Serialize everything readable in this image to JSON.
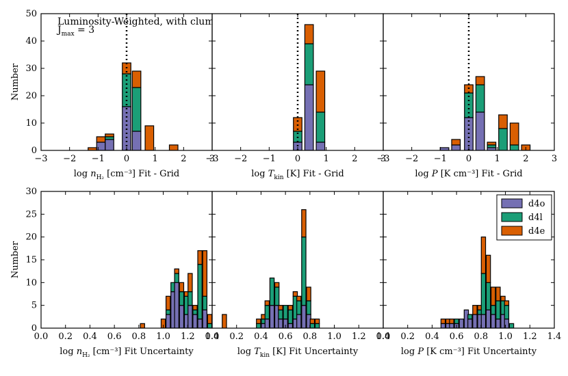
{
  "colors": {
    "d4o": "#7570b3",
    "d4l": "#1b9e77",
    "d4e": "#d95f02"
  },
  "chart_data": {
    "type": "bar",
    "title": "",
    "annotation": {
      "line1": "Luminosity-Weighted, with clumping",
      "line2": "J",
      "line2_sub": "max",
      "line2_rest": " = 3"
    },
    "legend": {
      "placement": "top-right",
      "entries": [
        "d4o",
        "d4l",
        "d4e"
      ]
    },
    "rows": [
      {
        "ylabel": "Number",
        "ylim": [
          0,
          50
        ],
        "yticks": [
          0,
          10,
          20,
          30,
          40,
          50
        ],
        "xticks": [
          -3,
          -2,
          -1,
          0,
          1,
          2,
          3
        ],
        "xtick_labels": [
          "−3",
          "−2",
          "−1",
          "0",
          "1",
          "2",
          "3"
        ],
        "binwidth": 0.3,
        "vline": 0,
        "panels": [
          {
            "xlabel_pre": "log ",
            "xlabel_var": "n",
            "xlabel_sub": "H₂",
            "xlabel_post": " [cm⁻³] Fit - Grid",
            "xlim": [
              -3,
              3
            ],
            "bins": [
              {
                "center": -1.2,
                "d4o": 0,
                "d4l": 0,
                "d4e": 1
              },
              {
                "center": -0.9,
                "d4o": 3,
                "d4l": 0,
                "d4e": 2
              },
              {
                "center": -0.6,
                "d4o": 4,
                "d4l": 1,
                "d4e": 1
              },
              {
                "center": -0.3,
                "d4o": 0,
                "d4l": 0,
                "d4e": 0
              },
              {
                "center": 0.0,
                "d4o": 16,
                "d4l": 12,
                "d4e": 4
              },
              {
                "center": 0.35,
                "d4o": 7,
                "d4l": 16,
                "d4e": 6
              },
              {
                "center": 0.8,
                "d4o": 0,
                "d4l": 0,
                "d4e": 9
              },
              {
                "center": 1.65,
                "d4o": 0,
                "d4l": 0,
                "d4e": 2
              }
            ]
          },
          {
            "xlabel_pre": "log ",
            "xlabel_var": "T",
            "xlabel_sub": "kin",
            "xlabel_post": " [K] Fit - Grid",
            "xlim": [
              -3,
              3
            ],
            "bins": [
              {
                "center": 0.0,
                "d4o": 3,
                "d4l": 4,
                "d4e": 5
              },
              {
                "center": 0.4,
                "d4o": 24,
                "d4l": 15,
                "d4e": 7
              },
              {
                "center": 0.8,
                "d4o": 3,
                "d4l": 11,
                "d4e": 15
              }
            ]
          },
          {
            "xlabel_pre": "log ",
            "xlabel_var": "P",
            "xlabel_sub": "",
            "xlabel_post": " [K cm⁻³] Fit - Grid",
            "xlim": [
              -3,
              3
            ],
            "bins": [
              {
                "center": -0.85,
                "d4o": 1,
                "d4l": 0,
                "d4e": 0
              },
              {
                "center": -0.45,
                "d4o": 2,
                "d4l": 0,
                "d4e": 2
              },
              {
                "center": 0.0,
                "d4o": 12,
                "d4l": 9,
                "d4e": 3
              },
              {
                "center": 0.4,
                "d4o": 14,
                "d4l": 10,
                "d4e": 3
              },
              {
                "center": 0.8,
                "d4o": 1,
                "d4l": 1,
                "d4e": 1
              },
              {
                "center": 1.2,
                "d4o": 0,
                "d4l": 8,
                "d4e": 5
              },
              {
                "center": 1.6,
                "d4o": 0,
                "d4l": 2,
                "d4e": 8
              },
              {
                "center": 2.0,
                "d4o": 0,
                "d4l": 0,
                "d4e": 2
              }
            ]
          }
        ]
      },
      {
        "ylabel": "Number",
        "ylim": [
          0,
          30
        ],
        "yticks": [
          0,
          5,
          10,
          15,
          20,
          25,
          30
        ],
        "xticks": [
          0.0,
          0.2,
          0.4,
          0.6,
          0.8,
          1.0,
          1.2,
          1.4
        ],
        "xtick_labels": [
          "0.0",
          "0.2",
          "0.4",
          "0.6",
          "0.8",
          "1.0",
          "1.2",
          "1.4"
        ],
        "binwidth": 0.035,
        "vline": null,
        "panels": [
          {
            "xlabel_pre": "log ",
            "xlabel_var": "n",
            "xlabel_sub": "H₂",
            "xlabel_post": " [cm⁻³] Fit Uncertainty",
            "xlim": [
              0,
              1.4
            ],
            "bins": [
              {
                "center": 0.83,
                "d4o": 0,
                "d4l": 0,
                "d4e": 1
              },
              {
                "center": 1.0,
                "d4o": 0,
                "d4l": 0,
                "d4e": 2
              },
              {
                "center": 1.04,
                "d4o": 3,
                "d4l": 1,
                "d4e": 3
              },
              {
                "center": 1.08,
                "d4o": 8,
                "d4l": 2,
                "d4e": 0
              },
              {
                "center": 1.11,
                "d4o": 10,
                "d4l": 2,
                "d4e": 1
              },
              {
                "center": 1.15,
                "d4o": 5,
                "d4l": 3,
                "d4e": 2
              },
              {
                "center": 1.19,
                "d4o": 3,
                "d4l": 4,
                "d4e": 1
              },
              {
                "center": 1.22,
                "d4o": 5,
                "d4l": 3,
                "d4e": 4
              },
              {
                "center": 1.26,
                "d4o": 3,
                "d4l": 1,
                "d4e": 1
              },
              {
                "center": 1.3,
                "d4o": 2,
                "d4l": 12,
                "d4e": 3
              },
              {
                "center": 1.34,
                "d4o": 4,
                "d4l": 3,
                "d4e": 10
              },
              {
                "center": 1.38,
                "d4o": 0,
                "d4l": 1,
                "d4e": 2
              }
            ]
          },
          {
            "xlabel_pre": "log ",
            "xlabel_var": "T",
            "xlabel_sub": "kin",
            "xlabel_post": " [K] Fit Uncertainty",
            "xlim": [
              0,
              1.4
            ],
            "bins": [
              {
                "center": 0.1,
                "d4o": 0,
                "d4l": 0,
                "d4e": 3
              },
              {
                "center": 0.38,
                "d4o": 0,
                "d4l": 1,
                "d4e": 1
              },
              {
                "center": 0.42,
                "d4o": 1,
                "d4l": 1,
                "d4e": 1
              },
              {
                "center": 0.45,
                "d4o": 2,
                "d4l": 3,
                "d4e": 1
              },
              {
                "center": 0.49,
                "d4o": 5,
                "d4l": 6,
                "d4e": 0
              },
              {
                "center": 0.53,
                "d4o": 5,
                "d4l": 4,
                "d4e": 1
              },
              {
                "center": 0.56,
                "d4o": 2,
                "d4l": 2,
                "d4e": 1
              },
              {
                "center": 0.6,
                "d4o": 2,
                "d4l": 3,
                "d4e": 0
              },
              {
                "center": 0.64,
                "d4o": 1,
                "d4l": 3,
                "d4e": 1
              },
              {
                "center": 0.68,
                "d4o": 2,
                "d4l": 5,
                "d4e": 1
              },
              {
                "center": 0.71,
                "d4o": 3,
                "d4l": 3,
                "d4e": 1
              },
              {
                "center": 0.75,
                "d4o": 5,
                "d4l": 15,
                "d4e": 6
              },
              {
                "center": 0.79,
                "d4o": 3,
                "d4l": 3,
                "d4e": 3
              },
              {
                "center": 0.82,
                "d4o": 0,
                "d4l": 1,
                "d4e": 1
              },
              {
                "center": 0.86,
                "d4o": 0,
                "d4l": 1,
                "d4e": 1
              }
            ]
          },
          {
            "xlabel_pre": "log ",
            "xlabel_var": "P",
            "xlabel_sub": "",
            "xlabel_post": " [K cm⁻³] Fit Uncertainty",
            "xlim": [
              0,
              1.4
            ],
            "bins": [
              {
                "center": 0.49,
                "d4o": 1,
                "d4l": 0,
                "d4e": 1
              },
              {
                "center": 0.53,
                "d4o": 1,
                "d4l": 0,
                "d4e": 1
              },
              {
                "center": 0.56,
                "d4o": 1,
                "d4l": 0,
                "d4e": 1
              },
              {
                "center": 0.6,
                "d4o": 1,
                "d4l": 1,
                "d4e": 0
              },
              {
                "center": 0.64,
                "d4o": 2,
                "d4l": 0,
                "d4e": 0
              },
              {
                "center": 0.68,
                "d4o": 4,
                "d4l": 0,
                "d4e": 0
              },
              {
                "center": 0.71,
                "d4o": 2,
                "d4l": 1,
                "d4e": 0
              },
              {
                "center": 0.75,
                "d4o": 3,
                "d4l": 0,
                "d4e": 2
              },
              {
                "center": 0.79,
                "d4o": 3,
                "d4l": 1,
                "d4e": 1
              },
              {
                "center": 0.82,
                "d4o": 3,
                "d4l": 9,
                "d4e": 8
              },
              {
                "center": 0.86,
                "d4o": 4,
                "d4l": 6,
                "d4e": 6
              },
              {
                "center": 0.9,
                "d4o": 3,
                "d4l": 2,
                "d4e": 4
              },
              {
                "center": 0.94,
                "d4o": 2,
                "d4l": 4,
                "d4e": 3
              },
              {
                "center": 0.98,
                "d4o": 3,
                "d4l": 3,
                "d4e": 1
              },
              {
                "center": 1.01,
                "d4o": 2,
                "d4l": 3,
                "d4e": 1
              },
              {
                "center": 1.05,
                "d4o": 0,
                "d4l": 1,
                "d4e": 0
              }
            ]
          }
        ]
      }
    ]
  }
}
